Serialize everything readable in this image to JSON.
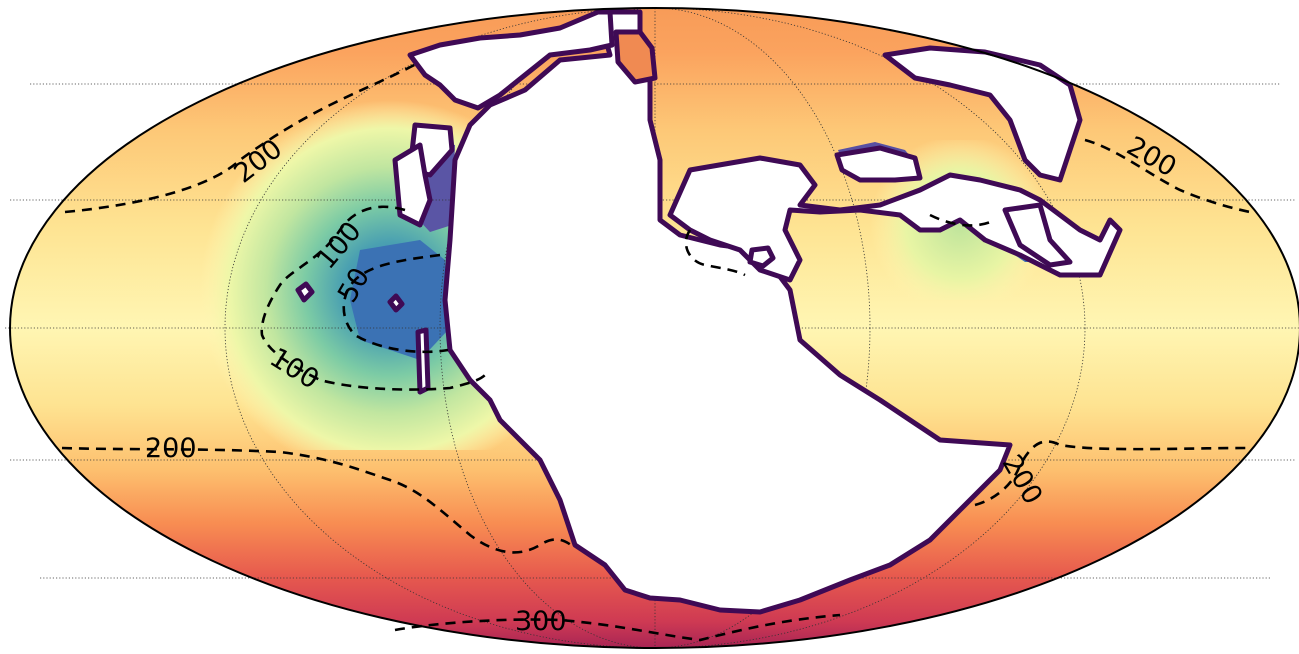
{
  "map": {
    "projection": "mollweide",
    "colormap": "Spectral",
    "land_color": "#ffffff",
    "coast_color": "#3f0a55",
    "grid_color": "#333333",
    "contour_style": "dashed",
    "contour_labels": {
      "c200_nw": "200",
      "c200_ne": "200",
      "c100_a": "100",
      "c50": "50",
      "c100_b": "100",
      "c200_sw": "200",
      "c200_se": "200",
      "c300": "300"
    }
  }
}
